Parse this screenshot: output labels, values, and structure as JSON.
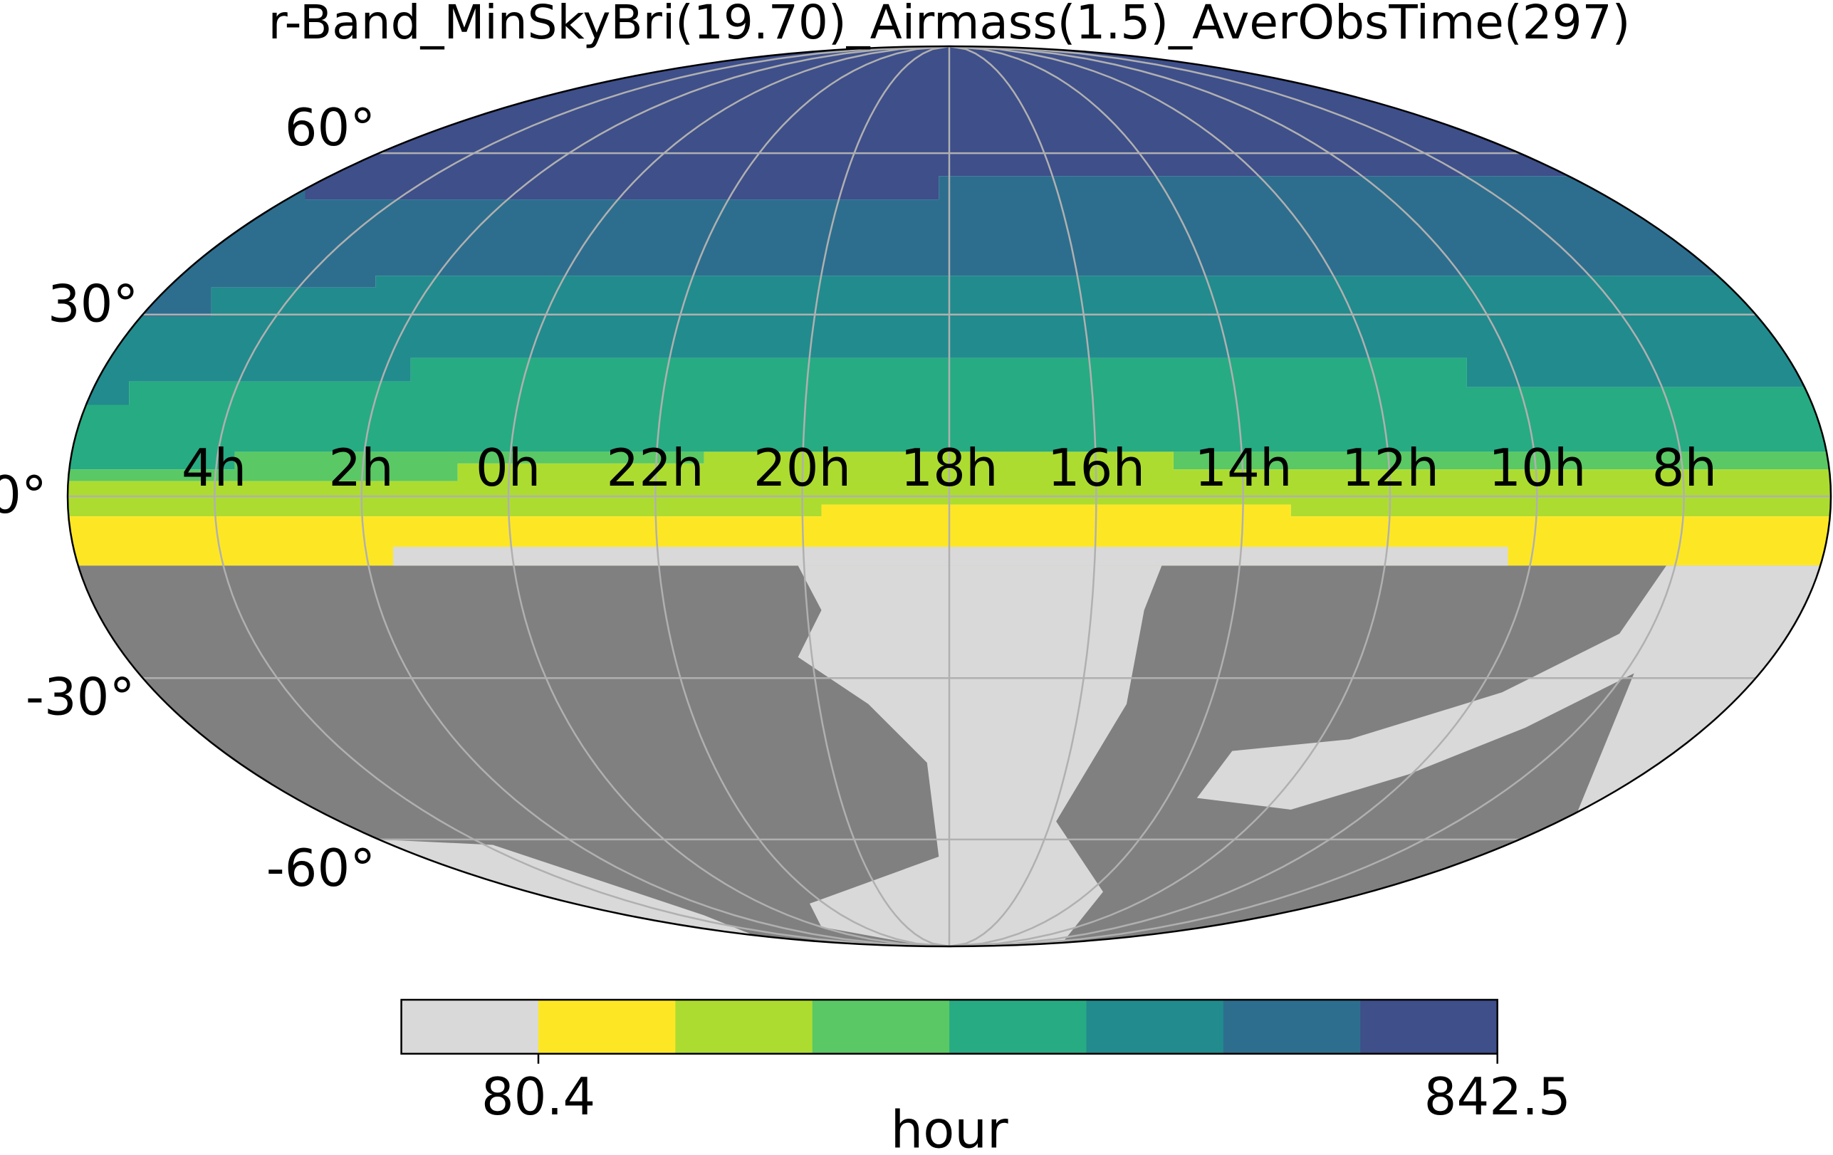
{
  "title": "r-Band_MinSkyBri(19.70)_Airmass(1.5)_AverObsTime(297)",
  "map": {
    "lon_labels": [
      "4h",
      "2h",
      "0h",
      "22h",
      "20h",
      "18h",
      "16h",
      "14h",
      "12h",
      "10h",
      "8h"
    ],
    "lat_labels": [
      "60°",
      "30°",
      "0°",
      "-30°",
      "-60°"
    ],
    "band_colors": [
      "#3e4f8a",
      "#2d6e8e",
      "#228b8d",
      "#27ab82",
      "#5ac864",
      "#addc30",
      "#fde725"
    ],
    "masked_color": "#808080",
    "empty_color": "#d9d9d9"
  },
  "colorbar": {
    "colors": [
      "#d9d9d9",
      "#fde725",
      "#addc30",
      "#5ac864",
      "#27ab82",
      "#228b8d",
      "#2d6e8e",
      "#3e4f8a"
    ],
    "lim": [
      -28.5,
      842.5
    ],
    "ticks": [
      {
        "value": 80.4,
        "label": "80.4"
      },
      {
        "value": 842.5,
        "label": "842.5"
      }
    ],
    "label": "hour"
  }
}
